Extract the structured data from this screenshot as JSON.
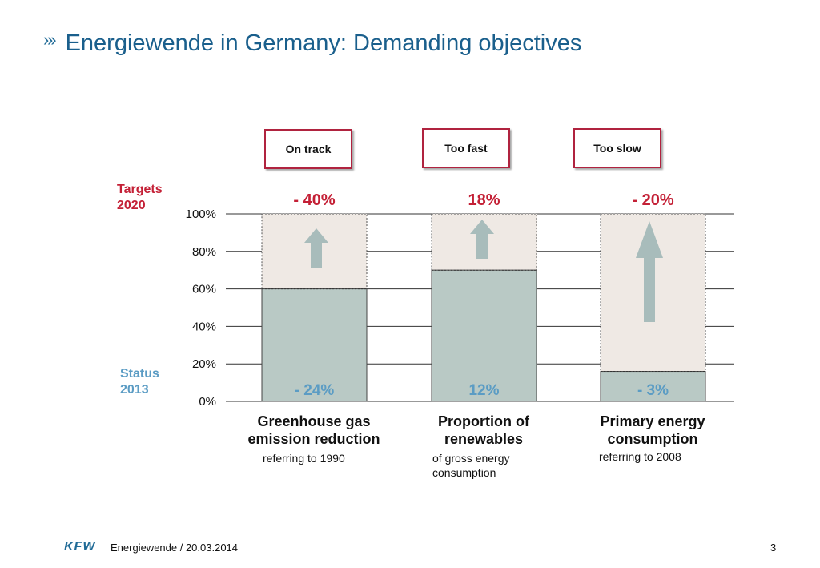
{
  "header": {
    "mark": "»›",
    "title": "Energiewende in Germany: Demanding objectives"
  },
  "status_boxes": [
    "On track",
    "Too fast",
    "Too slow"
  ],
  "side_labels": {
    "targets": [
      "Targets",
      "2020"
    ],
    "status": [
      "Status",
      "2013"
    ]
  },
  "chart_data": {
    "type": "bar",
    "categories": [
      "Greenhouse gas emission reduction",
      "Proportion of renewables",
      "Primary energy consumption"
    ],
    "category_label_lines": [
      [
        "Greenhouse gas",
        "emission reduction"
      ],
      [
        "Proportion of",
        "renewables"
      ],
      [
        "Primary energy",
        "consumption"
      ]
    ],
    "category_notes": [
      [
        "referring to 1990"
      ],
      [
        "of gross energy",
        "consumption"
      ],
      [
        "referring to 2008"
      ]
    ],
    "series": [
      {
        "name": "Status 2013",
        "values": [
          60,
          70,
          16
        ],
        "labels": [
          "- 24%",
          "12%",
          "- 3%"
        ]
      },
      {
        "name": "Targets 2020",
        "values": [
          100,
          100,
          100
        ],
        "labels": [
          "- 40%",
          "18%",
          "- 20%"
        ]
      }
    ],
    "yticks": [
      "0%",
      "20%",
      "40%",
      "60%",
      "80%",
      "100%"
    ],
    "ylim": [
      0,
      100
    ],
    "grid": true,
    "colors": {
      "status_bar": "#b9c9c5",
      "target_bar": "#efe9e4",
      "arrow": "#a8bcbb",
      "target_text": "#c42036",
      "status_text": "#5b9cc4",
      "grid": "#333333"
    }
  },
  "footer": {
    "logo": "KFW",
    "text": "Energiewende / 20.03.2014",
    "page": "3"
  }
}
